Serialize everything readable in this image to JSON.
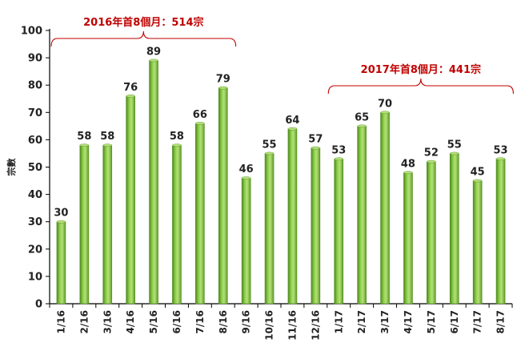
{
  "chart_data": {
    "type": "bar",
    "ylabel": "宗數",
    "ylim": [
      0,
      100
    ],
    "yticks": [
      0,
      10,
      20,
      30,
      40,
      50,
      60,
      70,
      80,
      90,
      100
    ],
    "grid": false,
    "categories": [
      "1/16",
      "2/16",
      "3/16",
      "4/16",
      "5/16",
      "6/16",
      "7/16",
      "8/16",
      "9/16",
      "10/16",
      "11/16",
      "12/16",
      "1/17",
      "2/17",
      "3/17",
      "4/17",
      "5/17",
      "6/17",
      "7/17",
      "8/17"
    ],
    "values": [
      30,
      58,
      58,
      76,
      89,
      58,
      66,
      79,
      46,
      55,
      64,
      57,
      53,
      65,
      70,
      48,
      52,
      55,
      45,
      53
    ],
    "annotations": [
      {
        "text": "2016年首8個月：514宗",
        "from_category": "1/16",
        "to_category": "8/16"
      },
      {
        "text": "2017年首8個月：441宗",
        "from_category": "1/17",
        "to_category": "8/17"
      }
    ],
    "colors": {
      "bar": "#7bbf3a",
      "bar_dark": "#4f8a1e",
      "bar_light": "#b5e07a",
      "annotation": "#c00000",
      "axis": "#000000"
    }
  }
}
